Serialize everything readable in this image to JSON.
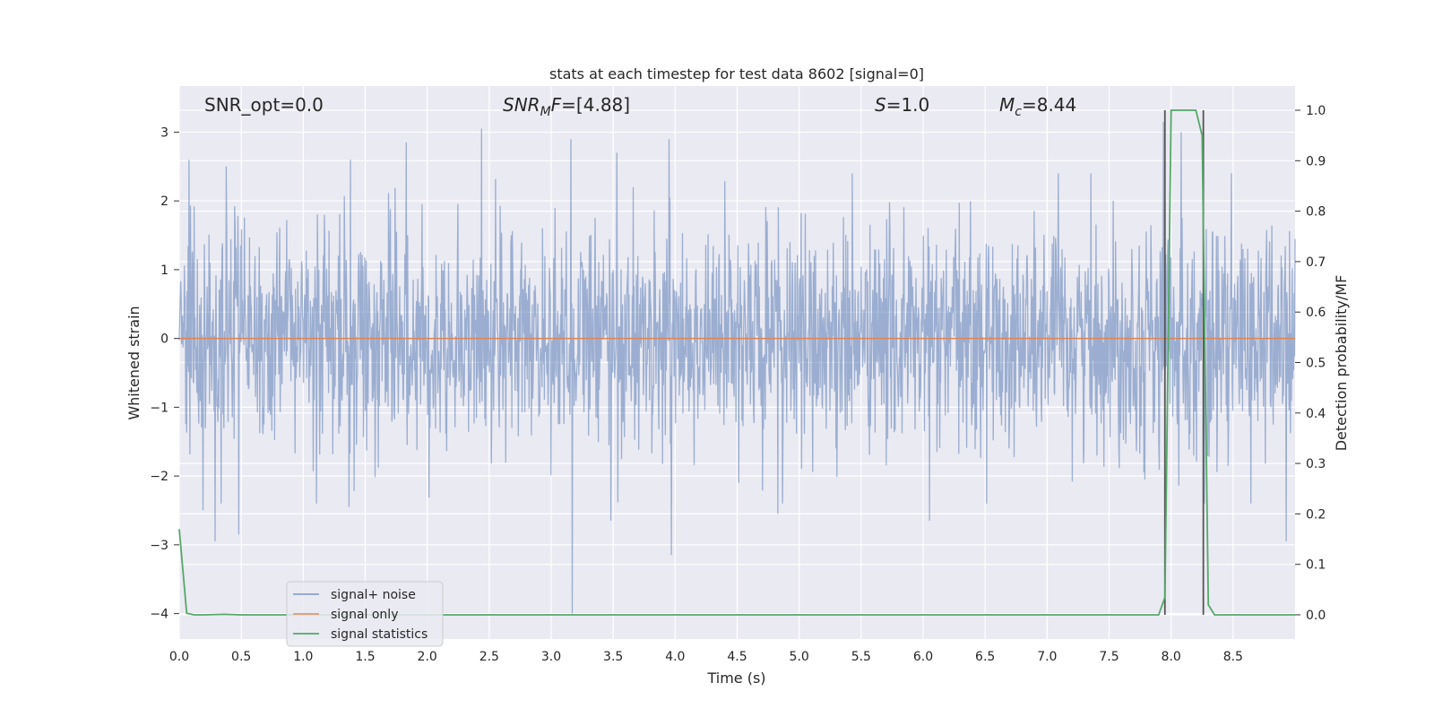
{
  "chart_data": {
    "type": "line",
    "title": "stats at each timestep for test data 8602 [signal=0]",
    "xlabel": "Time (s)",
    "ylabel": "Whitened strain",
    "ylabel_right": "Detection probability/MF",
    "xlim": [
      0,
      9.0
    ],
    "ylim": [
      -4.37,
      3.67
    ],
    "ylim_right": [
      -0.048,
      1.048
    ],
    "x_ticks": [
      "0.0",
      "0.5",
      "1.0",
      "1.5",
      "2.0",
      "2.5",
      "3.0",
      "3.5",
      "4.0",
      "4.5",
      "5.0",
      "5.5",
      "6.0",
      "6.5",
      "7.0",
      "7.5",
      "8.0",
      "8.5"
    ],
    "y_ticks": [
      "−4",
      "−3",
      "−2",
      "−1",
      "0",
      "1",
      "2",
      "3"
    ],
    "y_right_ticks": [
      "0.0",
      "0.1",
      "0.2",
      "0.3",
      "0.4",
      "0.5",
      "0.6",
      "0.7",
      "0.8",
      "0.9",
      "1.0"
    ],
    "annotations": {
      "snr_opt": "SNR_opt=0.0",
      "snr_mf_main": "SNR",
      "snr_mf_sub": "M",
      "snr_mf_tail": "F",
      "snr_mf_value": "=[4.88]",
      "s_var": "S",
      "s_value": "=1.0",
      "mc_var": "M",
      "mc_sub": "c",
      "mc_value": "=8.44"
    },
    "noise": {
      "name": "signal+ noise",
      "color": "#4c72b0",
      "x_start": 0.0,
      "x_end": 9.0,
      "std": 0.8,
      "peaks": [
        {
          "x": 0.08,
          "y": 2.6
        },
        {
          "x": 0.38,
          "y": 2.5
        },
        {
          "x": 1.38,
          "y": 2.6
        },
        {
          "x": 1.83,
          "y": 2.85
        },
        {
          "x": 2.44,
          "y": 3.05
        },
        {
          "x": 3.16,
          "y": 2.9
        },
        {
          "x": 3.53,
          "y": 2.7
        },
        {
          "x": 3.95,
          "y": 2.9
        },
        {
          "x": 7.94,
          "y": 3.15
        },
        {
          "x": 8.08,
          "y": 3.0
        }
      ],
      "troughs": [
        {
          "x": 0.19,
          "y": -2.5
        },
        {
          "x": 0.29,
          "y": -2.95
        },
        {
          "x": 0.48,
          "y": -2.85
        },
        {
          "x": 1.37,
          "y": -2.45
        },
        {
          "x": 3.17,
          "y": -4.0
        },
        {
          "x": 3.48,
          "y": -2.65
        },
        {
          "x": 3.97,
          "y": -3.15
        },
        {
          "x": 4.83,
          "y": -2.55
        },
        {
          "x": 6.05,
          "y": -2.65
        },
        {
          "x": 8.27,
          "y": -2.4
        },
        {
          "x": 8.93,
          "y": -2.95
        }
      ]
    },
    "signal_only": {
      "name": "signal only",
      "color": "#dd8452",
      "x": [
        0.0,
        9.0
      ],
      "y": [
        0.0,
        0.0
      ]
    },
    "statistics": {
      "name": "signal statistics",
      "color": "#55a868",
      "x": [
        0.0,
        0.06,
        0.12,
        0.2,
        0.36,
        0.5,
        7.72,
        7.9,
        7.95,
        8.0,
        8.05,
        8.2,
        8.25,
        8.3,
        8.35,
        9.0
      ],
      "y": [
        0.17,
        0.003,
        0.0,
        0.0,
        0.001,
        0.0,
        0.0,
        0.0,
        0.035,
        1.0,
        1.0,
        1.0,
        0.95,
        0.02,
        0.0,
        0.0
      ]
    },
    "vlines": {
      "color": "#555555",
      "x": [
        7.95,
        8.26
      ],
      "y_right_range": [
        0.0,
        1.0
      ]
    },
    "legend": {
      "placement": "lower-left"
    },
    "grid": true,
    "background": "#eaeaf2",
    "grid_color": "#ffffff"
  }
}
